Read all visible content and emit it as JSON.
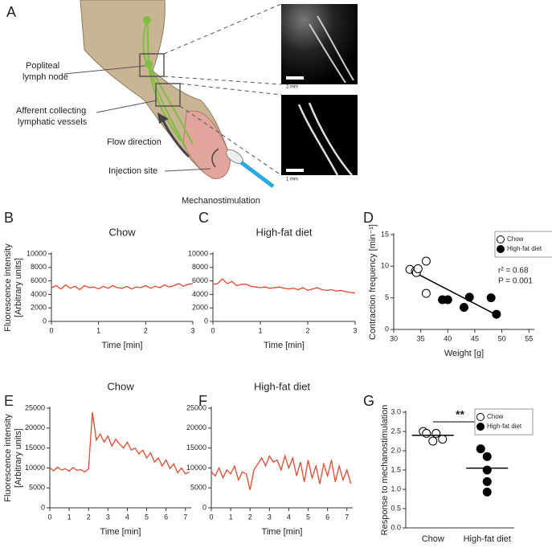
{
  "panel_a": {
    "letter": "A",
    "labels": {
      "node": [
        "Popliteal",
        "lymph node"
      ],
      "vessels": [
        "Afferent collecting",
        "lymphatic vessels"
      ],
      "flow": "Flow direction",
      "injection": "Injection site",
      "mechano": "Mechanostimulation"
    },
    "scale_bars": [
      "2 mm",
      "1 mm"
    ]
  },
  "chart_data": [
    {
      "type": "line",
      "letter": "B",
      "title": "Chow",
      "xlabel": "Time [min]",
      "ylabel": [
        "Fluorescence intensity",
        "[Arbitrary units]"
      ],
      "color": "#e8482c",
      "x": [
        0,
        0.1,
        0.2,
        0.3,
        0.4,
        0.5,
        0.6,
        0.7,
        0.8,
        0.9,
        1,
        1.1,
        1.2,
        1.3,
        1.4,
        1.5,
        1.6,
        1.7,
        1.8,
        1.9,
        2,
        2.1,
        2.2,
        2.3,
        2.4,
        2.5,
        2.6,
        2.7,
        2.8,
        2.9,
        3
      ],
      "values": [
        5000,
        5300,
        4800,
        5400,
        4900,
        5200,
        4700,
        5300,
        5000,
        5100,
        4800,
        5200,
        4900,
        5300,
        5000,
        4900,
        5200,
        4800,
        5100,
        5000,
        5300,
        4900,
        5200,
        5000,
        5400,
        5100,
        5300,
        5600,
        5200,
        5500,
        5600
      ],
      "xlim": [
        0,
        3
      ],
      "xticks": [
        0,
        1,
        2,
        3
      ],
      "ylim": [
        0,
        10000
      ],
      "yticks": [
        0,
        2000,
        4000,
        6000,
        8000,
        10000
      ]
    },
    {
      "type": "line",
      "letter": "C",
      "title": "High-fat diet",
      "xlabel": "Time [min]",
      "color": "#e8482c",
      "x": [
        0,
        0.1,
        0.2,
        0.3,
        0.4,
        0.5,
        0.6,
        0.7,
        0.8,
        0.9,
        1,
        1.1,
        1.2,
        1.3,
        1.4,
        1.5,
        1.6,
        1.7,
        1.8,
        1.9,
        2,
        2.1,
        2.2,
        2.3,
        2.4,
        2.5,
        2.6,
        2.7,
        2.8,
        2.9,
        3
      ],
      "values": [
        5500,
        5600,
        6300,
        5600,
        5900,
        5300,
        5500,
        5500,
        5200,
        5100,
        5000,
        5100,
        4900,
        5000,
        5100,
        4900,
        4800,
        4900,
        4700,
        5000,
        4600,
        4800,
        5000,
        4700,
        4600,
        4700,
        4500,
        4600,
        4400,
        4300,
        4200
      ],
      "xlim": [
        0,
        3
      ],
      "xticks": [
        0,
        1,
        2,
        3
      ],
      "ylim": [
        0,
        10000
      ],
      "yticks": [
        0,
        2000,
        4000,
        6000,
        8000,
        10000
      ]
    },
    {
      "type": "scatter",
      "letter": "D",
      "xlabel": "Weight [g]",
      "ylabel": [
        "Contraction frequency [min⁻¹]"
      ],
      "legend": "upper right",
      "series": [
        {
          "name": "Chow",
          "color": "#000000",
          "filled": false,
          "x": [
            33,
            34,
            34.2,
            34.5,
            36,
            36
          ],
          "values": [
            9.5,
            9.2,
            9.0,
            9.6,
            10.8,
            5.7
          ]
        },
        {
          "name": "High-fat diet",
          "color": "#000000",
          "filled": true,
          "x": [
            39,
            40,
            43,
            44,
            48,
            49
          ],
          "values": [
            4.7,
            4.7,
            3.5,
            5.1,
            5.0,
            2.4
          ]
        }
      ],
      "fit": {
        "x": [
          33,
          49
        ],
        "y": [
          9.4,
          2.3
        ]
      },
      "annotations": [
        "r² = 0.68",
        "P = 0.001"
      ],
      "xlim": [
        30,
        56
      ],
      "xticks": [
        30,
        35,
        40,
        45,
        50,
        55
      ],
      "ylim": [
        0,
        15
      ],
      "yticks": [
        0,
        5,
        10,
        15
      ]
    },
    {
      "type": "line",
      "letter": "E",
      "title": "Chow",
      "xlabel": "Time [min]",
      "ylabel": [
        "Fluorescence intensity",
        "[Arbitrary units]"
      ],
      "color": "#e8482c",
      "x": [
        0,
        0.2,
        0.4,
        0.6,
        0.8,
        1,
        1.2,
        1.4,
        1.6,
        1.8,
        2,
        2.2,
        2.4,
        2.6,
        2.8,
        3,
        3.2,
        3.4,
        3.6,
        3.8,
        4,
        4.2,
        4.4,
        4.6,
        4.8,
        5,
        5.2,
        5.4,
        5.6,
        5.8,
        6,
        6.2,
        6.4,
        6.6,
        6.8,
        7,
        7.2
      ],
      "values": [
        10000,
        9300,
        10200,
        9500,
        9800,
        9200,
        10100,
        9400,
        9600,
        9000,
        9800,
        24000,
        17000,
        18500,
        16500,
        18000,
        15500,
        17200,
        16000,
        15000,
        16500,
        14500,
        15000,
        13500,
        14500,
        12500,
        13800,
        11500,
        12500,
        10500,
        12000,
        9800,
        11000,
        8800,
        10000,
        8500,
        9000
      ],
      "xlim": [
        0,
        7.3
      ],
      "xticks": [
        0,
        1,
        2,
        3,
        4,
        5,
        6,
        7
      ],
      "ylim": [
        0,
        25000
      ],
      "yticks": [
        0,
        5000,
        10000,
        15000,
        20000,
        25000
      ]
    },
    {
      "type": "line",
      "letter": "F",
      "title": "High-fat diet",
      "xlabel": "Time [min]",
      "color": "#e8482c",
      "x": [
        0,
        0.2,
        0.4,
        0.6,
        0.8,
        1,
        1.2,
        1.4,
        1.6,
        1.8,
        2,
        2.2,
        2.4,
        2.6,
        2.8,
        3,
        3.2,
        3.4,
        3.6,
        3.8,
        4,
        4.2,
        4.4,
        4.6,
        4.8,
        5,
        5.2,
        5.4,
        5.6,
        5.8,
        6,
        6.2,
        6.4,
        6.6,
        6.8,
        7,
        7.2
      ],
      "values": [
        9000,
        8000,
        10000,
        7500,
        9500,
        8500,
        10500,
        7000,
        9000,
        8500,
        4500,
        9500,
        11000,
        12500,
        10500,
        13000,
        11500,
        12000,
        9500,
        13000,
        10000,
        12500,
        8000,
        11500,
        6500,
        12000,
        7500,
        10500,
        6000,
        11000,
        8000,
        12000,
        6500,
        10500,
        7000,
        9500,
        6000
      ],
      "xlim": [
        0,
        7.3
      ],
      "xticks": [
        0,
        1,
        2,
        3,
        4,
        5,
        6,
        7
      ],
      "ylim": [
        0,
        25000
      ],
      "yticks": [
        0,
        5000,
        10000,
        15000,
        20000,
        25000
      ]
    },
    {
      "type": "strip",
      "letter": "G",
      "ylabel": [
        "Response to mechanostimulation"
      ],
      "legend": "upper right",
      "categories": [
        "Chow",
        "High-fat diet"
      ],
      "series": [
        {
          "name": "Chow",
          "color": "#000000",
          "filled": false,
          "values": [
            2.5,
            2.45,
            2.25,
            2.45,
            2.3
          ]
        },
        {
          "name": "High-fat diet",
          "color": "#000000",
          "filled": true,
          "values": [
            2.05,
            1.85,
            1.5,
            1.2,
            0.93
          ]
        }
      ],
      "means": [
        2.4,
        1.55
      ],
      "significance": "**",
      "ylim": [
        0,
        3
      ],
      "yticks": [
        {
          "value": 0,
          "label": "0.0"
        },
        {
          "value": 0.5,
          "label": "0.5"
        },
        {
          "value": 1,
          "label": "1.0"
        },
        {
          "value": 1.5,
          "label": "1.5"
        },
        {
          "value": 2,
          "label": "2.0"
        },
        {
          "value": 2.5,
          "label": "2.5"
        },
        {
          "value": 3,
          "label": "3.0"
        }
      ]
    }
  ]
}
